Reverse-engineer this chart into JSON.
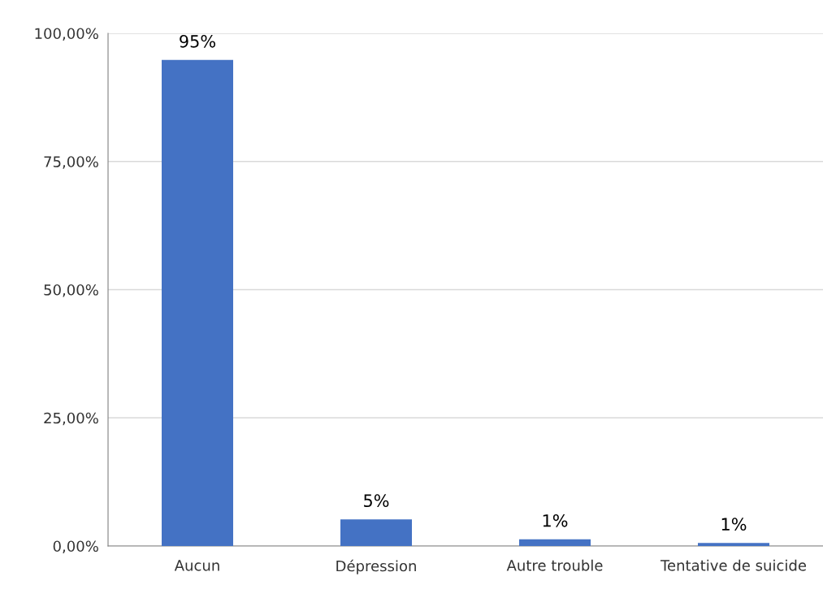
{
  "chart_data": {
    "type": "bar",
    "categories": [
      "Aucun",
      "Dépression",
      "Autre trouble",
      "Tentative de suicide"
    ],
    "values": [
      94.8,
      5.2,
      1.3,
      0.6
    ],
    "value_labels": [
      "95%",
      "5%",
      "1%",
      "1%"
    ],
    "color": "#4472c4",
    "ylim": [
      0,
      100
    ],
    "yticks": [
      {
        "value": 0,
        "label": "0,00%"
      },
      {
        "value": 25,
        "label": "25,00%"
      },
      {
        "value": 50,
        "label": "50,00%"
      },
      {
        "value": 75,
        "label": "75,00%"
      },
      {
        "value": 100,
        "label": "100,00%"
      }
    ],
    "grid": "y",
    "legend": false
  }
}
